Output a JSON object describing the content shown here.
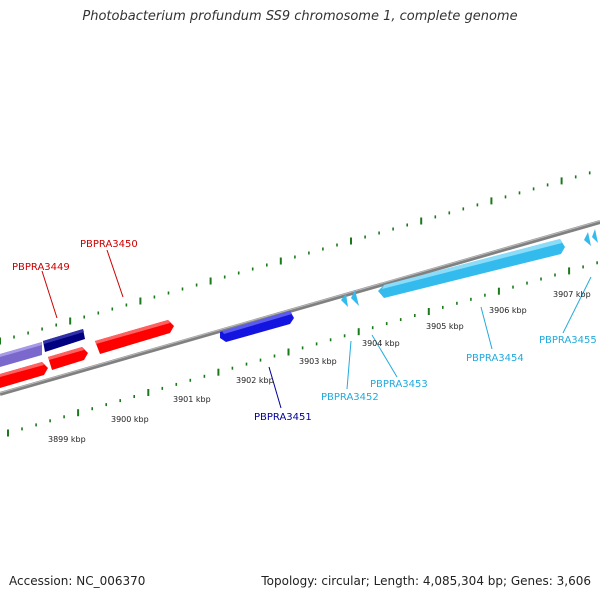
{
  "title": "Photobacterium profundum SS9 chromosome 1, complete genome",
  "footer": {
    "accession": "Accession: NC_006370",
    "summary": "Topology: circular; Length: 4,085,304 bp; Genes: 3,606"
  },
  "colors": {
    "backbone": "#808080",
    "ticks": "#1a7a1a",
    "red": "#ff0000",
    "blue": "#1414e0",
    "navy": "#000080",
    "lavender": "#7b68cc",
    "lightblue": "#33bbee",
    "label_red": "#cc0000",
    "label_navy": "#000099",
    "label_lightblue": "#22aadd"
  },
  "scale_labels": [
    "3899 kbp",
    "3900 kbp",
    "3901 kbp",
    "3902 kbp",
    "3903 kbp",
    "3904 kbp",
    "3905 kbp",
    "3906 kbp",
    "3907 kbp"
  ],
  "gene_labels": {
    "PBPRA3449": "PBPRA3449",
    "PBPRA3450": "PBPRA3450",
    "PBPRA3451": "PBPRA3451",
    "PBPRA3452": "PBPRA3452",
    "PBPRA3453": "PBPRA3453",
    "PBPRA3454": "PBPRA3454",
    "PBPRA3455": "PBPRA3455"
  }
}
